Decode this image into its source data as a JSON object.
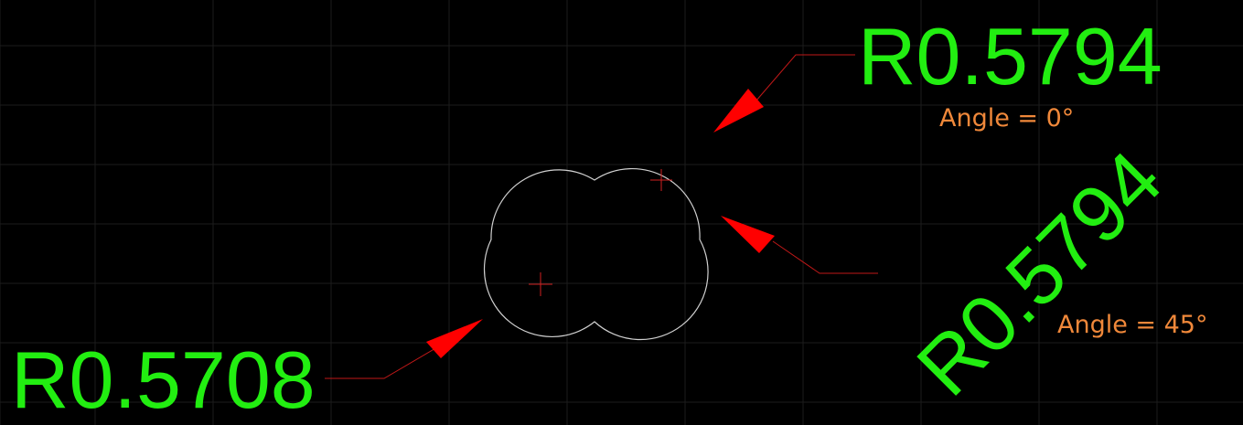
{
  "colors": {
    "background": "#000000",
    "grid": "#1c1c1c",
    "outline": "#d0d0d0",
    "center_mark": "#d02020",
    "leader": "#c01818",
    "arrowhead": "#ff0000",
    "dimension_text": "#22ee11",
    "angle_text": "#f0883a"
  },
  "dimensions": {
    "top_right": {
      "text": "R0.5794",
      "angle_label": "Angle = 0°"
    },
    "right_rotated": {
      "text": "R0.5794",
      "angle_label": "Angle = 45°"
    },
    "bottom_left": {
      "text": "R0.5708"
    }
  }
}
